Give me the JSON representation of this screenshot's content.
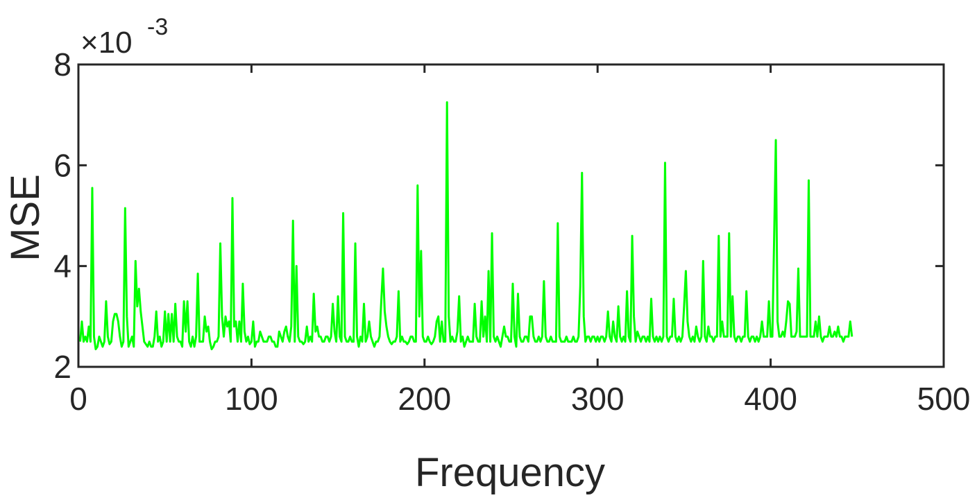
{
  "chart_data": {
    "type": "line",
    "title": "",
    "xlabel": "Frequency",
    "ylabel": "MSE",
    "y_multiplier_label": "×10",
    "y_multiplier_exponent": "-3",
    "xlim": [
      0,
      500
    ],
    "ylim": [
      2,
      8
    ],
    "xticks": [
      0,
      100,
      200,
      300,
      400,
      500
    ],
    "yticks": [
      2,
      4,
      6,
      8
    ],
    "xtick_labels": [
      "0",
      "100",
      "200",
      "300",
      "400",
      "500"
    ],
    "ytick_labels": [
      "2",
      "4",
      "6",
      "8"
    ],
    "grid": false,
    "legend": "none",
    "series": [
      {
        "color": "#00ff00",
        "x_start": 1,
        "x_step": 1,
        "values": [
          2.5,
          2.9,
          2.5,
          2.6,
          2.5,
          2.8,
          2.5,
          5.55,
          2.6,
          2.35,
          2.4,
          2.6,
          2.5,
          2.4,
          2.5,
          3.3,
          2.6,
          2.45,
          2.5,
          2.9,
          3.05,
          3.05,
          2.9,
          2.6,
          2.4,
          2.5,
          5.15,
          3.0,
          2.4,
          2.5,
          2.6,
          2.4,
          4.1,
          3.2,
          3.55,
          3.1,
          2.8,
          2.5,
          2.45,
          2.4,
          2.5,
          2.4,
          2.4,
          2.6,
          3.1,
          2.5,
          2.6,
          2.4,
          2.5,
          3.1,
          2.5,
          3.05,
          2.5,
          3.05,
          2.5,
          3.25,
          2.6,
          2.5,
          2.5,
          2.4,
          3.3,
          2.7,
          3.3,
          2.5,
          2.4,
          2.6,
          2.4,
          2.6,
          3.85,
          2.5,
          2.5,
          2.5,
          3.0,
          2.7,
          2.8,
          2.5,
          2.35,
          2.4,
          2.5,
          2.5,
          2.6,
          4.45,
          3.0,
          2.6,
          3.0,
          2.8,
          2.9,
          2.5,
          5.35,
          2.8,
          2.9,
          2.5,
          2.9,
          2.5,
          3.65,
          2.7,
          2.5,
          2.6,
          2.45,
          2.5,
          2.9,
          2.4,
          2.5,
          2.5,
          2.7,
          2.6,
          2.5,
          2.5,
          2.5,
          2.6,
          2.6,
          2.5,
          2.5,
          2.4,
          2.4,
          2.7,
          2.6,
          2.5,
          2.7,
          2.8,
          2.6,
          2.5,
          2.8,
          4.9,
          2.5,
          4.0,
          2.6,
          2.5,
          2.5,
          2.45,
          2.5,
          2.8,
          2.5,
          2.6,
          2.5,
          3.45,
          2.7,
          2.8,
          2.6,
          2.6,
          2.5,
          2.5,
          2.6,
          2.6,
          2.5,
          2.6,
          3.25,
          2.7,
          2.5,
          3.4,
          2.6,
          2.5,
          5.05,
          2.6,
          2.5,
          2.5,
          2.6,
          2.5,
          2.5,
          4.45,
          2.6,
          2.4,
          2.6,
          2.5,
          3.25,
          2.5,
          2.6,
          2.9,
          2.6,
          2.5,
          2.4,
          2.5,
          2.5,
          2.6,
          3.3,
          3.95,
          3.1,
          2.8,
          2.6,
          2.5,
          2.45,
          2.5,
          2.5,
          2.6,
          3.5,
          2.5,
          2.6,
          2.5,
          2.5,
          2.45,
          2.5,
          2.6,
          2.6,
          2.5,
          2.5,
          5.6,
          3.0,
          4.3,
          2.6,
          2.5,
          2.5,
          2.6,
          2.5,
          2.45,
          2.5,
          2.6,
          2.9,
          3.0,
          2.5,
          2.9,
          2.5,
          2.5,
          7.25,
          3.0,
          2.5,
          2.6,
          2.5,
          2.5,
          2.7,
          3.4,
          2.5,
          2.6,
          2.4,
          2.5,
          2.6,
          2.5,
          2.5,
          2.5,
          3.25,
          2.6,
          2.5,
          2.5,
          3.3,
          2.6,
          3.0,
          2.5,
          3.9,
          2.5,
          4.65,
          2.6,
          2.5,
          2.6,
          2.5,
          2.4,
          2.6,
          2.8,
          2.6,
          2.6,
          2.5,
          2.5,
          3.65,
          2.6,
          2.4,
          3.45,
          2.6,
          2.5,
          2.5,
          2.6,
          2.6,
          2.5,
          3.0,
          3.0,
          2.6,
          2.5,
          2.5,
          2.6,
          2.5,
          2.6,
          3.7,
          2.6,
          2.5,
          2.5,
          2.6,
          2.5,
          2.5,
          2.5,
          4.85,
          2.6,
          2.5,
          2.5,
          2.5,
          2.6,
          2.5,
          2.5,
          2.5,
          2.6,
          2.5,
          2.5,
          2.6,
          3.6,
          5.85,
          3.0,
          2.5,
          2.6,
          2.6,
          2.5,
          2.6,
          2.6,
          2.5,
          2.6,
          2.5,
          2.6,
          2.6,
          2.5,
          2.6,
          3.1,
          2.6,
          2.5,
          2.9,
          2.6,
          2.5,
          3.2,
          2.6,
          2.5,
          2.6,
          2.5,
          3.5,
          2.6,
          2.5,
          4.6,
          3.0,
          2.5,
          2.7,
          2.6,
          2.5,
          2.6,
          2.6,
          2.5,
          2.6,
          2.5,
          3.35,
          2.6,
          2.5,
          2.6,
          2.5,
          2.6,
          2.5,
          2.6,
          6.05,
          2.6,
          2.5,
          2.6,
          2.6,
          3.35,
          2.6,
          2.5,
          2.6,
          2.5,
          2.6,
          3.2,
          3.9,
          2.9,
          2.6,
          2.5,
          2.6,
          2.5,
          2.8,
          2.6,
          2.5,
          2.6,
          4.1,
          2.6,
          2.5,
          2.8,
          2.6,
          2.6,
          2.5,
          2.6,
          2.6,
          4.6,
          2.6,
          2.9,
          2.6,
          2.6,
          2.6,
          4.65,
          2.6,
          3.4,
          2.6,
          2.5,
          2.6,
          2.6,
          2.5,
          2.6,
          2.6,
          3.5,
          2.6,
          2.5,
          2.6,
          2.6,
          2.5,
          2.6,
          2.5,
          2.6,
          2.9,
          2.6,
          2.6,
          2.6,
          3.3,
          2.6,
          2.6,
          4.5,
          6.5,
          2.9,
          2.6,
          2.6,
          2.7,
          2.6,
          2.9,
          3.3,
          3.25,
          2.6,
          2.6,
          2.6,
          2.7,
          3.95,
          2.6,
          2.6,
          2.6,
          2.6,
          2.6,
          5.7,
          2.6,
          2.6,
          2.6,
          2.9,
          2.6,
          3.0,
          2.6,
          2.5,
          2.6,
          2.6,
          2.6,
          2.8,
          2.6,
          2.6,
          2.7,
          2.6,
          2.8,
          2.6,
          2.6,
          2.5,
          2.6,
          2.6,
          2.6,
          2.9,
          2.6
        ]
      }
    ]
  }
}
